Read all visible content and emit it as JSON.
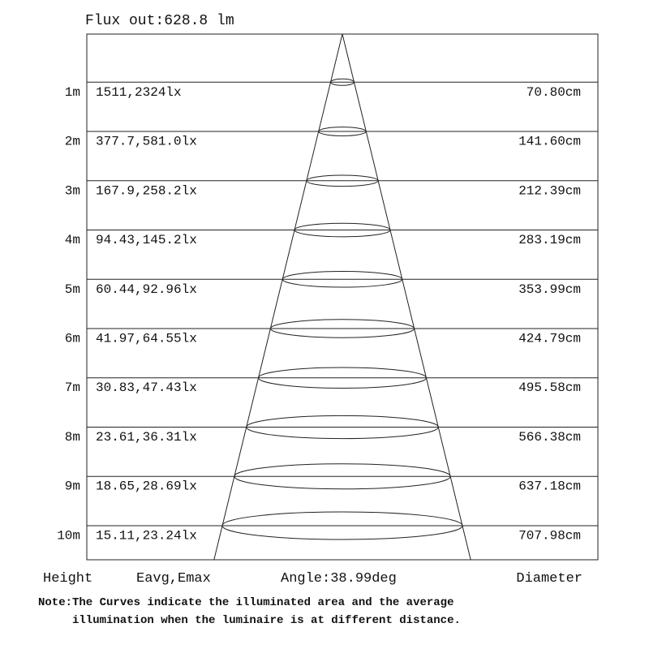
{
  "flux_label": "Flux out:628.8 lm",
  "footer": {
    "height_label": "Height",
    "eavg_emax_label": "Eavg,Emax",
    "angle_label": "Angle:38.99deg",
    "diameter_label": "Diameter"
  },
  "note": {
    "line1": "Note:The Curves indicate the illuminated area and the average",
    "line2": "illumination when the luminaire is at different distance."
  },
  "rows": [
    {
      "height": "1m",
      "eavg_emax": "1511,2324lx",
      "diameter": "70.80cm"
    },
    {
      "height": "2m",
      "eavg_emax": "377.7,581.0lx",
      "diameter": "141.60cm"
    },
    {
      "height": "3m",
      "eavg_emax": "167.9,258.2lx",
      "diameter": "212.39cm"
    },
    {
      "height": "4m",
      "eavg_emax": "94.43,145.2lx",
      "diameter": "283.19cm"
    },
    {
      "height": "5m",
      "eavg_emax": "60.44,92.96lx",
      "diameter": "353.99cm"
    },
    {
      "height": "6m",
      "eavg_emax": "41.97,64.55lx",
      "diameter": "424.79cm"
    },
    {
      "height": "7m",
      "eavg_emax": "30.83,47.43lx",
      "diameter": "495.58cm"
    },
    {
      "height": "8m",
      "eavg_emax": "23.61,36.31lx",
      "diameter": "566.38cm"
    },
    {
      "height": "9m",
      "eavg_emax": "18.65,28.69lx",
      "diameter": "637.18cm"
    },
    {
      "height": "10m",
      "eavg_emax": "15.11,23.24lx",
      "diameter": "707.98cm"
    }
  ],
  "chart_data": {
    "type": "table",
    "title": "Flux out:628.8 lm",
    "flux_out_lm": 628.8,
    "beam_angle_deg": 38.99,
    "columns": [
      "Height",
      "Eavg,Emax",
      "Diameter"
    ],
    "heights_m": [
      1,
      2,
      3,
      4,
      5,
      6,
      7,
      8,
      9,
      10
    ],
    "eavg_lx": [
      1511,
      377.7,
      167.9,
      94.43,
      60.44,
      41.97,
      30.83,
      23.61,
      18.65,
      15.11
    ],
    "emax_lx": [
      2324,
      581.0,
      258.2,
      145.2,
      92.96,
      64.55,
      47.43,
      36.31,
      28.69,
      23.24
    ],
    "diameter_cm": [
      70.8,
      141.6,
      212.39,
      283.19,
      353.99,
      424.79,
      495.58,
      566.38,
      637.18,
      707.98
    ],
    "note": "Note:The Curves indicate the illuminated area and the average illumination when the luminaire is at different distance.",
    "layout_hints": {
      "legend": "none",
      "grid": "horizontal-row-lines",
      "shape": "light-cone-with-ellipses"
    }
  },
  "colors": {
    "line": "#222222",
    "text": "#111111",
    "background": "#ffffff"
  }
}
